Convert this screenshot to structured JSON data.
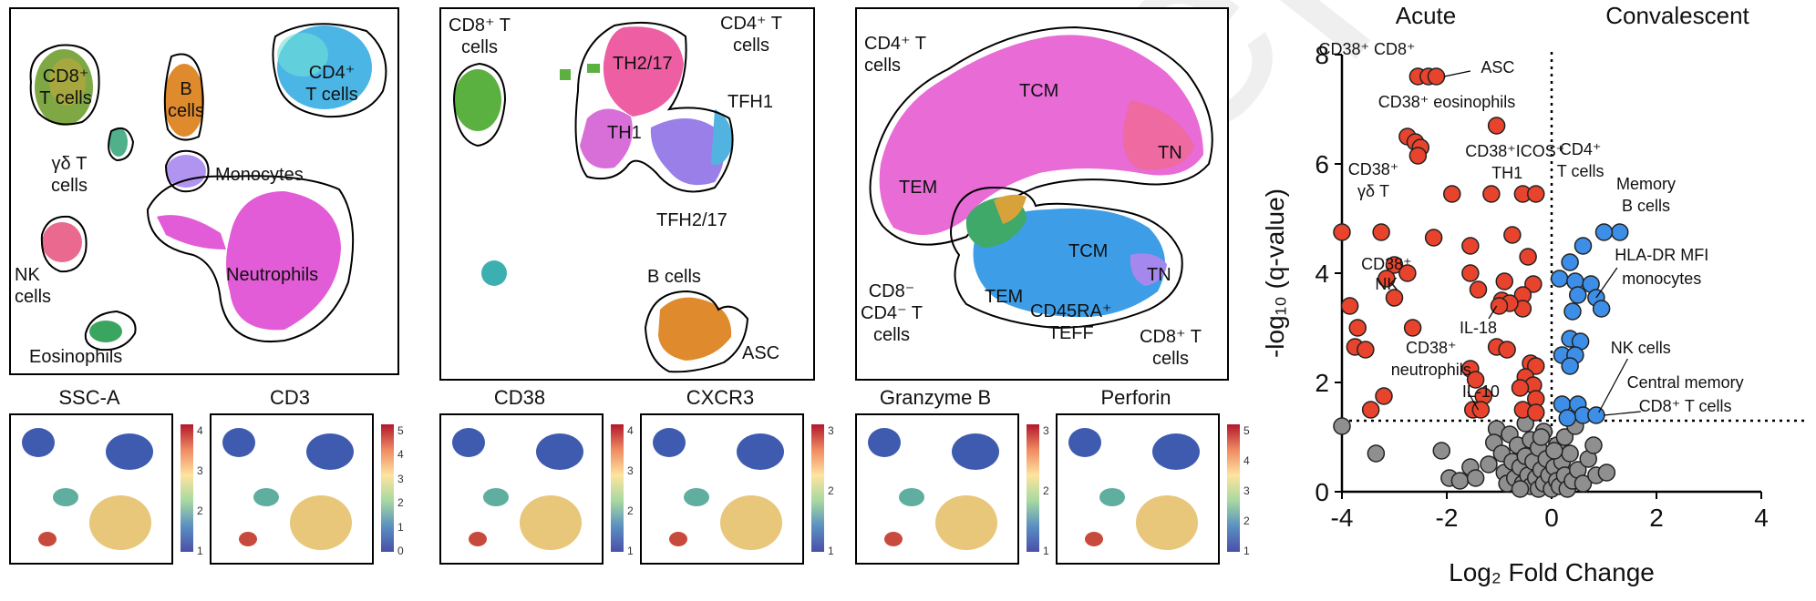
{
  "watermark": "Preprint",
  "panel1": {
    "clusters": {
      "cd8": "CD8⁺\nT cells",
      "b": "B\ncells",
      "cd4": "CD4⁺\nT cells",
      "gd": "γδ T\ncells",
      "mono": "Monocytes",
      "nk": "NK\ncells",
      "neut": "Neutrophils",
      "eos": "Eosinophils"
    }
  },
  "panel2": {
    "labels": {
      "cd8": "CD8⁺ T\ncells",
      "cd4": "CD4⁺ T\ncells",
      "th217": "TH2/17",
      "th1": "TH1",
      "tfh1": "TFH1",
      "tfh217": "TFH2/17",
      "bcells": "B cells",
      "asc": "ASC"
    }
  },
  "panel3": {
    "labels": {
      "cd4": "CD4⁺ T\ncells",
      "tcm": "TCM",
      "tn": "TN",
      "tem": "TEM",
      "cd8neg": "CD8⁻\nCD4⁻ T\ncells",
      "tcm2": "TCM",
      "tn2": "TN",
      "tem2": "TEM",
      "cd45ra": "CD45RA⁺\nTEFF",
      "cd8t": "CD8⁺ T\ncells"
    }
  },
  "minis": [
    {
      "title": "SSC-A",
      "ticks": [
        "4",
        "3",
        "2",
        "1"
      ]
    },
    {
      "title": "CD3",
      "ticks": [
        "5",
        "4",
        "3",
        "2",
        "1",
        "0"
      ]
    },
    {
      "title": "CD38",
      "ticks": [
        "4",
        "3",
        "2",
        "1"
      ]
    },
    {
      "title": "CXCR3",
      "ticks": [
        "3",
        "2",
        "1"
      ]
    },
    {
      "title": "Granzyme B",
      "ticks": [
        "3",
        "2",
        "1"
      ]
    },
    {
      "title": "Perforin",
      "ticks": [
        "5",
        "4",
        "3",
        "2",
        "1"
      ]
    }
  ],
  "volcano": {
    "header_left": "Acute",
    "header_right": "Convalescent",
    "annotations": {
      "a1": "CD38⁺ CD8⁺",
      "a2": "ASC",
      "a3": "CD38⁺ eosinophils",
      "a4": "CD38⁺ICOS⁺",
      "a4b": "TH1",
      "a5": "CD38⁺",
      "a5b": "γδ T",
      "a6": "CD38⁺",
      "a6b": "NK",
      "a7": "IL-18",
      "a8": "CD38⁺",
      "a8b": "neutrophils",
      "a9": "IL-10",
      "a10": "CD4⁺",
      "a10b": "T cells",
      "a11": "Memory",
      "a11b": "B cells",
      "a12": "HLA-DR MFI",
      "a12b": "monocytes",
      "a13": "NK cells",
      "a14": "Central memory",
      "a14b": "CD8⁺ T cells"
    }
  },
  "chart_data": {
    "type": "scatter",
    "xlabel": "Log₂ Fold Change",
    "ylabel": "-log₁₀ (q-value)",
    "xlim": [
      -4,
      4
    ],
    "ylim": [
      0,
      8
    ],
    "xticks": [
      "-4",
      "-2",
      "0",
      "2",
      "4"
    ],
    "yticks": [
      "0",
      "2",
      "4",
      "6",
      "8"
    ],
    "threshold_y": 1.3,
    "threshold_x": 0,
    "series": [
      {
        "color": "#e8432c",
        "points": [
          [
            -2.55,
            7.6
          ],
          [
            -2.35,
            7.6
          ],
          [
            -2.2,
            7.6
          ],
          [
            -2.75,
            6.5
          ],
          [
            -2.6,
            6.4
          ],
          [
            -2.5,
            6.3
          ],
          [
            -2.55,
            6.15
          ],
          [
            -1.05,
            6.7
          ],
          [
            -1.9,
            5.45
          ],
          [
            -1.15,
            5.45
          ],
          [
            -0.55,
            5.45
          ],
          [
            -0.3,
            5.45
          ],
          [
            -4.0,
            4.75
          ],
          [
            -3.25,
            4.75
          ],
          [
            -2.25,
            4.65
          ],
          [
            -0.75,
            4.7
          ],
          [
            -1.55,
            4.5
          ],
          [
            -0.45,
            4.3
          ],
          [
            -3.0,
            4.15
          ],
          [
            -2.75,
            4.0
          ],
          [
            -1.55,
            4.0
          ],
          [
            -3.15,
            3.9
          ],
          [
            -0.9,
            3.85
          ],
          [
            -1.4,
            3.7
          ],
          [
            -0.35,
            3.8
          ],
          [
            -3.0,
            3.55
          ],
          [
            -0.55,
            3.6
          ],
          [
            -3.85,
            3.4
          ],
          [
            -0.95,
            3.5
          ],
          [
            -0.55,
            3.35
          ],
          [
            -3.7,
            3.0
          ],
          [
            -2.65,
            3.0
          ],
          [
            -0.8,
            3.45
          ],
          [
            -1.0,
            3.4
          ],
          [
            -3.75,
            2.65
          ],
          [
            -3.55,
            2.6
          ],
          [
            -1.05,
            2.65
          ],
          [
            -0.85,
            2.6
          ],
          [
            -0.4,
            2.35
          ],
          [
            -1.55,
            2.25
          ],
          [
            -0.3,
            2.3
          ],
          [
            -0.5,
            2.1
          ],
          [
            -1.45,
            2.05
          ],
          [
            -0.35,
            1.95
          ],
          [
            -0.6,
            1.9
          ],
          [
            -3.2,
            1.75
          ],
          [
            -3.45,
            1.5
          ],
          [
            -1.3,
            1.75
          ],
          [
            -0.3,
            1.7
          ],
          [
            -1.5,
            1.5
          ],
          [
            -1.35,
            1.5
          ],
          [
            -0.55,
            1.5
          ],
          [
            -0.3,
            1.45
          ]
        ]
      },
      {
        "color": "#3d8ee6",
        "points": [
          [
            1.3,
            4.75
          ],
          [
            1.0,
            4.75
          ],
          [
            0.6,
            4.5
          ],
          [
            0.35,
            4.2
          ],
          [
            0.15,
            3.9
          ],
          [
            0.45,
            3.85
          ],
          [
            0.75,
            3.8
          ],
          [
            0.5,
            3.6
          ],
          [
            0.85,
            3.55
          ],
          [
            0.95,
            3.35
          ],
          [
            0.4,
            3.3
          ],
          [
            0.35,
            2.8
          ],
          [
            0.55,
            2.75
          ],
          [
            0.2,
            2.5
          ],
          [
            0.45,
            2.5
          ],
          [
            0.35,
            2.3
          ],
          [
            0.2,
            1.6
          ],
          [
            0.5,
            1.6
          ],
          [
            0.6,
            1.4
          ],
          [
            0.85,
            1.4
          ],
          [
            0.3,
            1.35
          ]
        ]
      },
      {
        "color": "#8f8f8f",
        "points": [
          [
            -4.0,
            1.2
          ],
          [
            -3.35,
            0.7
          ],
          [
            -2.1,
            0.75
          ],
          [
            -1.95,
            0.25
          ],
          [
            -1.75,
            0.2
          ],
          [
            -1.55,
            0.45
          ],
          [
            -1.45,
            0.25
          ],
          [
            -1.05,
            1.15
          ],
          [
            -1.1,
            0.9
          ],
          [
            -0.95,
            0.7
          ],
          [
            -0.9,
            0.35
          ],
          [
            -0.85,
            0.15
          ],
          [
            -0.8,
            1.05
          ],
          [
            -0.75,
            0.55
          ],
          [
            -0.7,
            0.25
          ],
          [
            -0.65,
            0.85
          ],
          [
            -0.6,
            0.45
          ],
          [
            -0.55,
            0.15
          ],
          [
            -0.5,
            1.25
          ],
          [
            -0.5,
            0.65
          ],
          [
            -0.45,
            0.3
          ],
          [
            -0.4,
            0.95
          ],
          [
            -0.4,
            0.1
          ],
          [
            -0.35,
            0.55
          ],
          [
            -0.3,
            0.25
          ],
          [
            -0.25,
            0.8
          ],
          [
            -0.25,
            0.05
          ],
          [
            -0.2,
            0.4
          ],
          [
            -0.15,
            1.1
          ],
          [
            -0.15,
            0.15
          ],
          [
            -0.1,
            0.6
          ],
          [
            -0.05,
            0.3
          ],
          [
            0.0,
            0.05
          ],
          [
            0.05,
            0.45
          ],
          [
            0.1,
            0.2
          ],
          [
            0.1,
            0.85
          ],
          [
            0.15,
            0.1
          ],
          [
            0.2,
            0.55
          ],
          [
            0.25,
            1.0
          ],
          [
            0.25,
            0.3
          ],
          [
            0.3,
            0.05
          ],
          [
            0.35,
            0.7
          ],
          [
            0.4,
            0.2
          ],
          [
            0.45,
            1.2
          ],
          [
            0.5,
            0.4
          ],
          [
            0.6,
            0.15
          ],
          [
            0.7,
            0.6
          ],
          [
            0.8,
            0.85
          ],
          [
            0.85,
            0.3
          ],
          [
            1.05,
            0.35
          ],
          [
            -0.6,
            0.05
          ],
          [
            -1.2,
            0.5
          ],
          [
            -0.2,
            1.0
          ],
          [
            0.05,
            0.75
          ]
        ]
      }
    ]
  }
}
